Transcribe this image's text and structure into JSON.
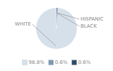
{
  "chart_data": {
    "type": "pie",
    "categories": [
      "WHITE",
      "HISPANIC",
      "BLACK"
    ],
    "values": [
      98.8,
      0.6,
      0.6
    ],
    "value_labels": [
      "98.8%",
      "0.6%",
      "0.6%"
    ],
    "colors": [
      "#d6e0ea",
      "#7a9bb5",
      "#2e4d6b"
    ],
    "legend": "bottom"
  }
}
